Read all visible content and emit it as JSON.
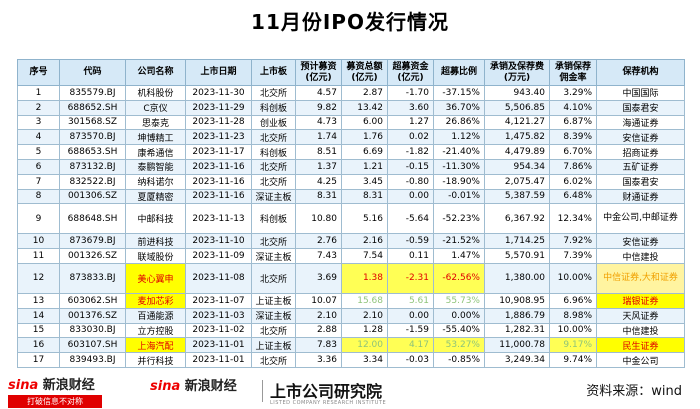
{
  "title": "11月份IPO发行情况",
  "headers": [
    "序号",
    "代码",
    "公司名称",
    "上市日期",
    "上市板",
    "预计募资(亿元)",
    "募资总额(亿元)",
    "超募资金(亿元)",
    "超募比例",
    "承销及保荐费(万元)",
    "承销保荐佣金率",
    "保荐机构"
  ],
  "rows": [
    [
      "1",
      "835579.BJ",
      "机科股份",
      "2023-11-30",
      "北交所",
      "4.57",
      "2.87",
      "-1.70",
      "-37.15%",
      "943.40",
      "3.29%",
      "中国国际"
    ],
    [
      "2",
      "688652.SH",
      "C京仪",
      "2023-11-29",
      "科创板",
      "9.82",
      "13.42",
      "3.60",
      "36.70%",
      "5,506.85",
      "4.10%",
      "国泰君安"
    ],
    [
      "3",
      "301568.SZ",
      "思泰克",
      "2023-11-28",
      "创业板",
      "4.73",
      "6.00",
      "1.27",
      "26.86%",
      "4,121.27",
      "6.87%",
      "海通证券"
    ],
    [
      "4",
      "873570.BJ",
      "坤博精工",
      "2023-11-23",
      "北交所",
      "1.74",
      "1.76",
      "0.02",
      "1.12%",
      "1,475.82",
      "8.39%",
      "安信证券"
    ],
    [
      "5",
      "688653.SH",
      "康希通信",
      "2023-11-17",
      "科创板",
      "8.51",
      "6.69",
      "-1.82",
      "-21.40%",
      "4,479.89",
      "6.70%",
      "招商证券"
    ],
    [
      "6",
      "873132.BJ",
      "泰鹏智能",
      "2023-11-16",
      "北交所",
      "1.37",
      "1.21",
      "-0.15",
      "-11.30%",
      "954.34",
      "7.86%",
      "五矿证券"
    ],
    [
      "7",
      "832522.BJ",
      "纳科诺尔",
      "2023-11-16",
      "北交所",
      "4.25",
      "3.45",
      "-0.80",
      "-18.90%",
      "2,075.47",
      "6.02%",
      "国泰君安"
    ],
    [
      "8",
      "001306.SZ",
      "夏厦精密",
      "2023-11-16",
      "深证主板",
      "8.31",
      "8.31",
      "0.00",
      "-0.01%",
      "5,387.59",
      "6.48%",
      "财通证券"
    ],
    [
      "9",
      "688648.SH",
      "中邮科技",
      "2023-11-13",
      "科创板",
      "10.80",
      "5.16",
      "-5.64",
      "-52.23%",
      "6,367.92",
      "12.34%",
      "中金公司,中邮证券"
    ],
    [
      "10",
      "873679.BJ",
      "前进科技",
      "2023-11-10",
      "北交所",
      "2.76",
      "2.16",
      "-0.59",
      "-21.52%",
      "1,714.25",
      "7.92%",
      "安信证券"
    ],
    [
      "11",
      "001326.SZ",
      "联域股份",
      "2023-11-09",
      "深证主板",
      "7.43",
      "7.54",
      "0.11",
      "1.47%",
      "5,570.91",
      "7.39%",
      "中信建投"
    ],
    [
      "12",
      "873833.BJ",
      "美心翼申",
      "2023-11-08",
      "北交所",
      "3.69",
      "1.38",
      "-2.31",
      "-62.56%",
      "1,380.00",
      "10.00%",
      "中信证券,大和证券"
    ],
    [
      "13",
      "603062.SH",
      "麦加芯彩",
      "2023-11-07",
      "上证主板",
      "10.07",
      "15.68",
      "5.61",
      "55.73%",
      "10,908.95",
      "6.96%",
      "瑞银证券"
    ],
    [
      "14",
      "001376.SZ",
      "百通能源",
      "2023-11-03",
      "深证主板",
      "2.10",
      "2.10",
      "0.00",
      "0.00%",
      "1,886.79",
      "8.98%",
      "天风证券"
    ],
    [
      "15",
      "833030.BJ",
      "立方控股",
      "2023-11-02",
      "北交所",
      "2.88",
      "1.28",
      "-1.59",
      "-55.40%",
      "1,282.31",
      "10.00%",
      "中信建投"
    ],
    [
      "16",
      "603107.SH",
      "上海汽配",
      "2023-11-01",
      "上证主板",
      "7.83",
      "12.00",
      "4.17",
      "53.27%",
      "11,000.78",
      "9.17%",
      "民生证券"
    ],
    [
      "17",
      "839493.BJ",
      "并行科技",
      "2023-11-01",
      "北交所",
      "3.36",
      "3.34",
      "-0.03",
      "-0.85%",
      "3,249.34",
      "9.74%",
      "中金公司"
    ]
  ],
  "footer": {
    "sina1_logo": "sina",
    "sina1_name": "新浪财经",
    "sina1_slogan": "打破信息不对称",
    "sina2_logo": "sina",
    "sina2_name": "新浪财经",
    "institute": "上市公司研究院",
    "institute_en": "LISTED COMPANY RESEARCH INSTITUTE",
    "source": "资料来源：wind"
  },
  "colors": {
    "header_bg": "#d6e9f7",
    "alt_row": "#e9f3fb",
    "highlight": "#ffff00",
    "highlight_text": "#e00000",
    "faded_text": "#8fc47a",
    "brand_red": "#e00000"
  }
}
